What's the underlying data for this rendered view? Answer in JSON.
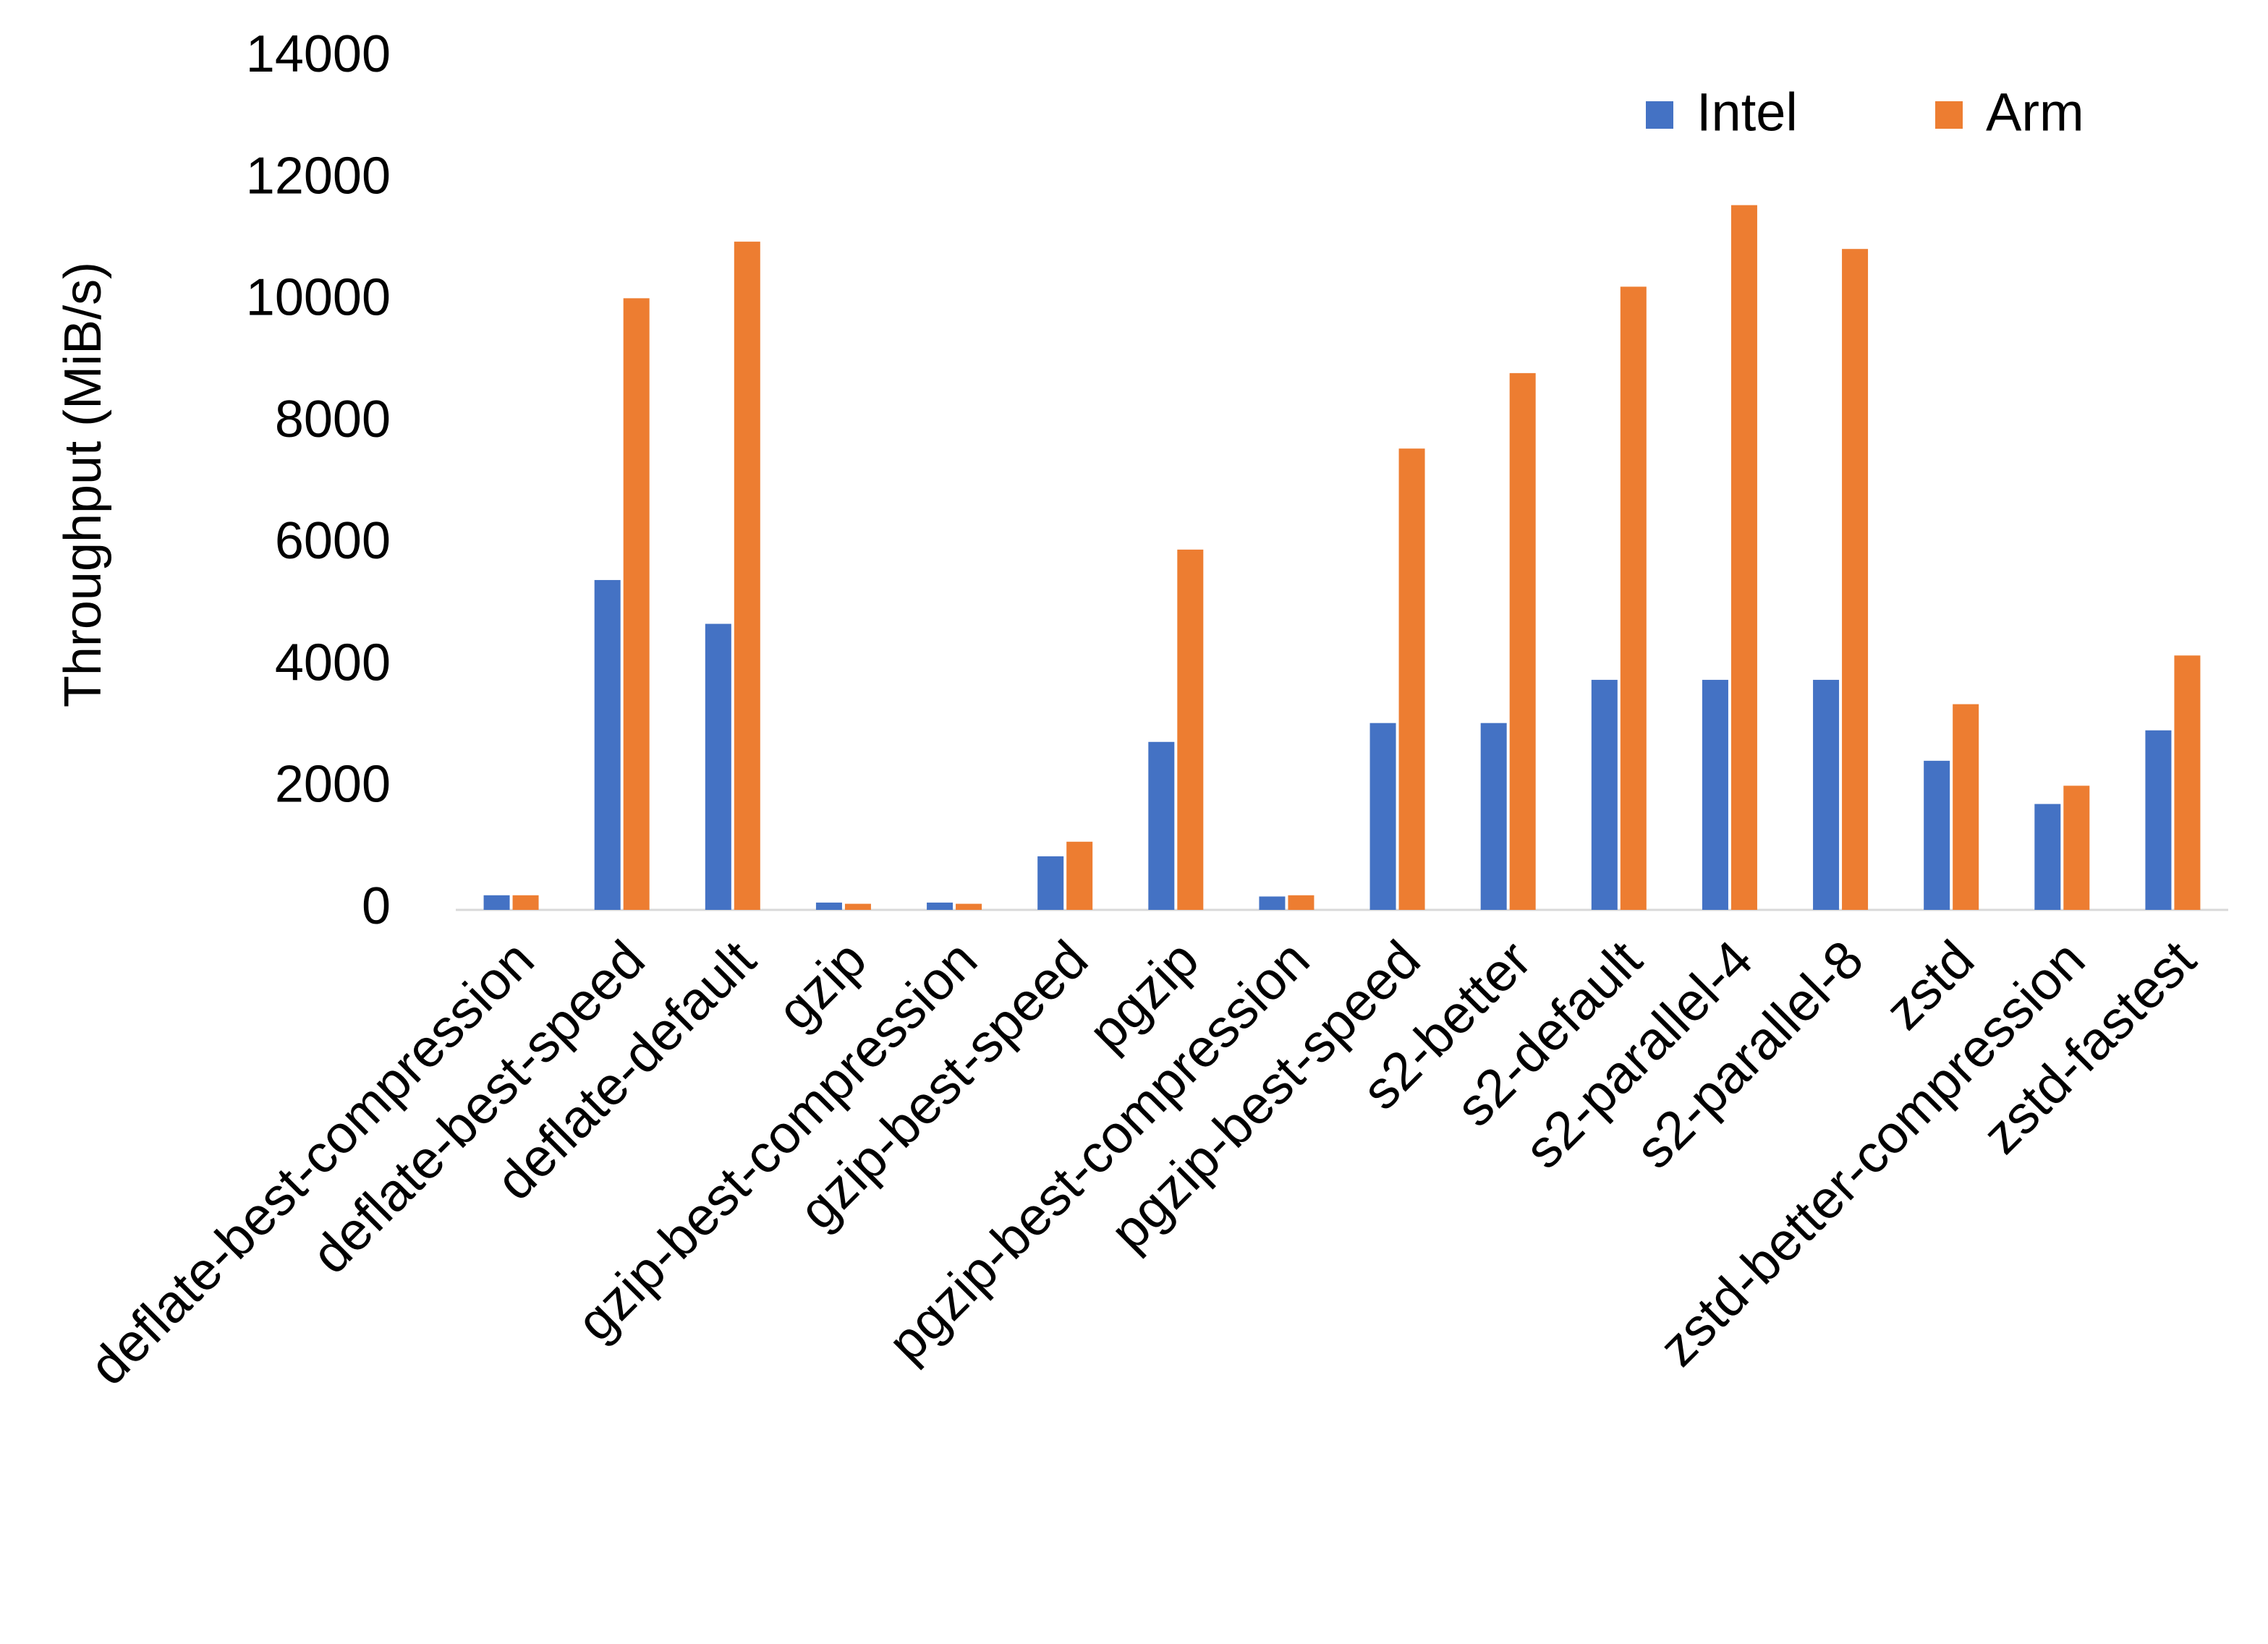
{
  "chart_data": {
    "type": "bar",
    "y_label": "Throughput (MiB/s)",
    "categories": [
      "deflate-best-compression",
      "deflate-best-speed",
      "deflate-default",
      "gzip",
      "gzip-best-compression",
      "gzip-best-speed",
      "pgzip",
      "pgzip-best-compression",
      "pgzip-best-speed",
      "s2-better",
      "s2-default",
      "s2-parallel-4",
      "s2-parallel-8",
      "zstd",
      "zstd-better-compression",
      "zstd-fastest"
    ],
    "series": [
      {
        "name": "Intel",
        "color": "#4472c4",
        "values": [
          240,
          5420,
          4700,
          120,
          120,
          880,
          2760,
          220,
          3070,
          3070,
          3780,
          3780,
          3780,
          2450,
          1740,
          2950
        ]
      },
      {
        "name": "Arm",
        "color": "#ed7d31",
        "values": [
          240,
          10050,
          10980,
          100,
          100,
          1120,
          5920,
          240,
          7580,
          8820,
          10240,
          11580,
          10860,
          3380,
          2040,
          4180
        ]
      }
    ],
    "ylim": [
      0,
      14000
    ],
    "yticks": [
      0,
      2000,
      4000,
      6000,
      8000,
      10000,
      12000,
      14000
    ],
    "grid": false,
    "legend": "top-right"
  }
}
